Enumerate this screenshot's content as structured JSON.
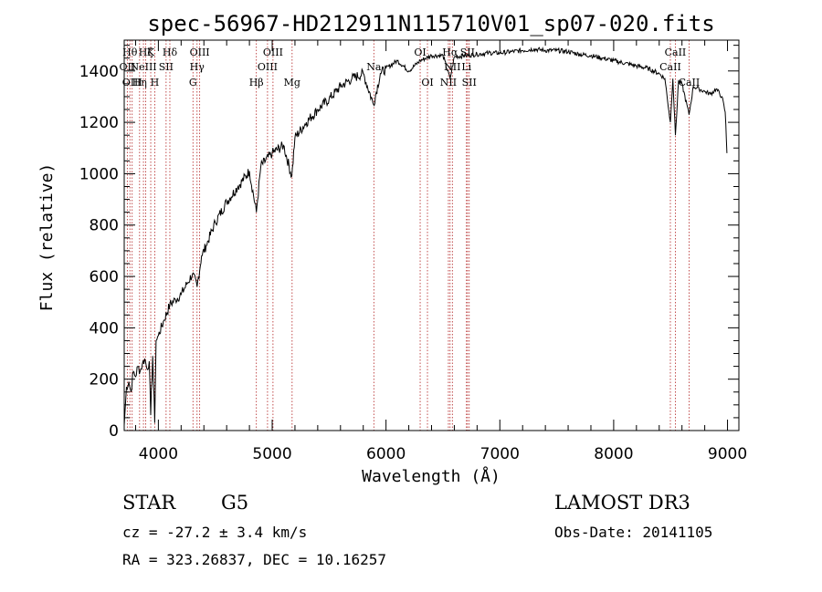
{
  "info": {
    "object_class": "STAR",
    "subclass": "G5",
    "survey": "LAMOST DR3",
    "cz": "cz = -27.2 ± 3.4 km/s",
    "obs_date": "Obs-Date: 20141105",
    "coords": "RA = 323.26837, DEC =  10.16257"
  },
  "colors": {
    "spectrum": "#000000",
    "line_marker": "#b22222",
    "frame": "#000000"
  },
  "chart_data": {
    "type": "line",
    "title": "spec-56967-HD212911N115710V01_sp07-020.fits",
    "xlabel": "Wavelength (Å)",
    "ylabel": "Flux (relative)",
    "xlim": [
      3700,
      9100
    ],
    "ylim": [
      0,
      1520
    ],
    "x_ticks": [
      4000,
      5000,
      6000,
      7000,
      8000,
      9000
    ],
    "y_ticks": [
      0,
      200,
      400,
      600,
      800,
      1000,
      1200,
      1400
    ],
    "series": [
      {
        "x": [
          3700,
          3720,
          3740,
          3760,
          3780,
          3800,
          3820,
          3840,
          3860,
          3880,
          3900,
          3920,
          3933,
          3950,
          3968,
          3980,
          4000,
          4050,
          4101,
          4150,
          4200,
          4250,
          4300,
          4340,
          4380,
          4420,
          4500,
          4600,
          4700,
          4800,
          4861,
          4900,
          5000,
          5100,
          5172,
          5200,
          5300,
          5400,
          5500,
          5600,
          5700,
          5800,
          5890,
          5950,
          6000,
          6100,
          6200,
          6300,
          6400,
          6500,
          6563,
          6600,
          6700,
          6800,
          6900,
          7000,
          7100,
          7200,
          7300,
          7400,
          7500,
          7600,
          7700,
          7800,
          7900,
          8000,
          8100,
          8200,
          8300,
          8400,
          8450,
          8498,
          8520,
          8542,
          8570,
          8600,
          8662,
          8700,
          8750,
          8800,
          8850,
          8900,
          8950,
          8980,
          8995
        ],
        "y": [
          20,
          170,
          190,
          150,
          230,
          210,
          250,
          230,
          260,
          280,
          240,
          270,
          60,
          290,
          30,
          350,
          370,
          430,
          490,
          510,
          530,
          570,
          610,
          560,
          680,
          720,
          810,
          890,
          950,
          1010,
          850,
          1030,
          1080,
          1110,
          990,
          1140,
          1200,
          1250,
          1290,
          1340,
          1370,
          1390,
          1270,
          1390,
          1410,
          1440,
          1400,
          1440,
          1460,
          1460,
          1370,
          1455,
          1460,
          1465,
          1470,
          1470,
          1475,
          1480,
          1485,
          1480,
          1480,
          1475,
          1465,
          1460,
          1450,
          1440,
          1430,
          1420,
          1410,
          1390,
          1370,
          1200,
          1370,
          1150,
          1360,
          1350,
          1230,
          1340,
          1330,
          1320,
          1310,
          1330,
          1300,
          1240,
          1080
        ]
      }
    ],
    "lines": [
      {
        "w": 3727,
        "label": "OII",
        "row": 1
      },
      {
        "w": 3750,
        "label": "Hθ",
        "row": 0
      },
      {
        "w": 3770,
        "label": "OIII",
        "row": 2
      },
      {
        "w": 3835,
        "label": "Hη",
        "row": 2
      },
      {
        "w": 3869,
        "label": "NeIII",
        "row": 1
      },
      {
        "w": 3889,
        "label": "Hζ",
        "row": 0
      },
      {
        "w": 3933,
        "label": "K",
        "row": 0
      },
      {
        "w": 3968,
        "label": "H",
        "row": 2
      },
      {
        "w": 4068,
        "label": "SII",
        "row": 1
      },
      {
        "w": 4101,
        "label": "Hδ",
        "row": 0
      },
      {
        "w": 4304,
        "label": "G",
        "row": 2
      },
      {
        "w": 4340,
        "label": "Hγ",
        "row": 1
      },
      {
        "w": 4363,
        "label": "OIII",
        "row": 0
      },
      {
        "w": 4861,
        "label": "Hβ",
        "row": 2
      },
      {
        "w": 4959,
        "label": "OIII",
        "row": 1
      },
      {
        "w": 5007,
        "label": "OIII",
        "row": 0
      },
      {
        "w": 5175,
        "label": "Mg",
        "row": 2
      },
      {
        "w": 5893,
        "label": "Na",
        "row": 1
      },
      {
        "w": 6300,
        "label": "OI",
        "row": 0
      },
      {
        "w": 6364,
        "label": "OI",
        "row": 2
      },
      {
        "w": 6548,
        "label": "NII",
        "row": 2
      },
      {
        "w": 6563,
        "label": "Hα",
        "row": 0
      },
      {
        "w": 6583,
        "label": "NII",
        "row": 1
      },
      {
        "w": 6707,
        "label": "Li",
        "row": 1
      },
      {
        "w": 6716,
        "label": "SII",
        "row": 0
      },
      {
        "w": 6731,
        "label": "SII",
        "row": 2
      },
      {
        "w": 8498,
        "label": "CaII",
        "row": 1
      },
      {
        "w": 8542,
        "label": "CaII",
        "row": 0
      },
      {
        "w": 8662,
        "label": "CaII",
        "row": 2
      }
    ]
  }
}
